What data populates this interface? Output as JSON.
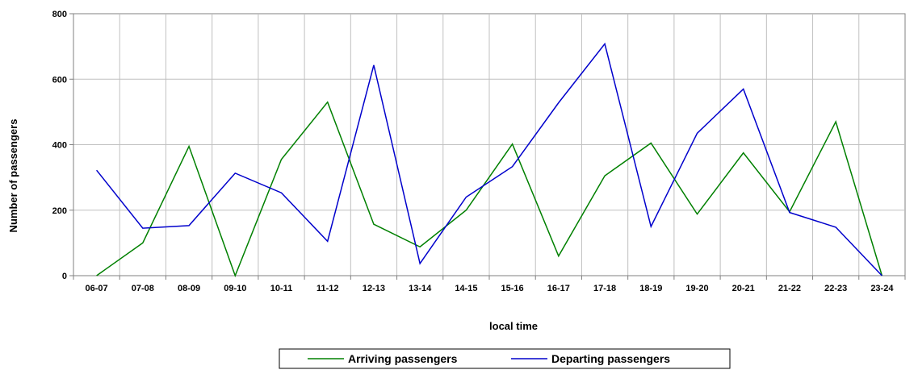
{
  "chart_data": {
    "type": "line",
    "title": "",
    "xlabel": "local time",
    "ylabel": "Number of passengers",
    "categories": [
      "06-07",
      "07-08",
      "08-09",
      "09-10",
      "10-11",
      "11-12",
      "12-13",
      "13-14",
      "14-15",
      "15-16",
      "16-17",
      "17-18",
      "18-19",
      "19-20",
      "20-21",
      "21-22",
      "22-23",
      "23-24"
    ],
    "ylim": [
      0,
      800
    ],
    "yticks": [
      0,
      200,
      400,
      600,
      800
    ],
    "grid": true,
    "legend_position": "bottom",
    "series": [
      {
        "name": "Arriving passengers",
        "color": "#008000",
        "values": [
          0,
          100,
          395,
          0,
          355,
          530,
          157,
          88,
          200,
          402,
          60,
          305,
          405,
          188,
          375,
          195,
          470,
          0
        ]
      },
      {
        "name": "Departing passengers",
        "color": "#0000cc",
        "values": [
          322,
          145,
          153,
          313,
          253,
          105,
          643,
          37,
          240,
          333,
          528,
          708,
          150,
          435,
          570,
          193,
          148,
          0
        ]
      }
    ]
  }
}
